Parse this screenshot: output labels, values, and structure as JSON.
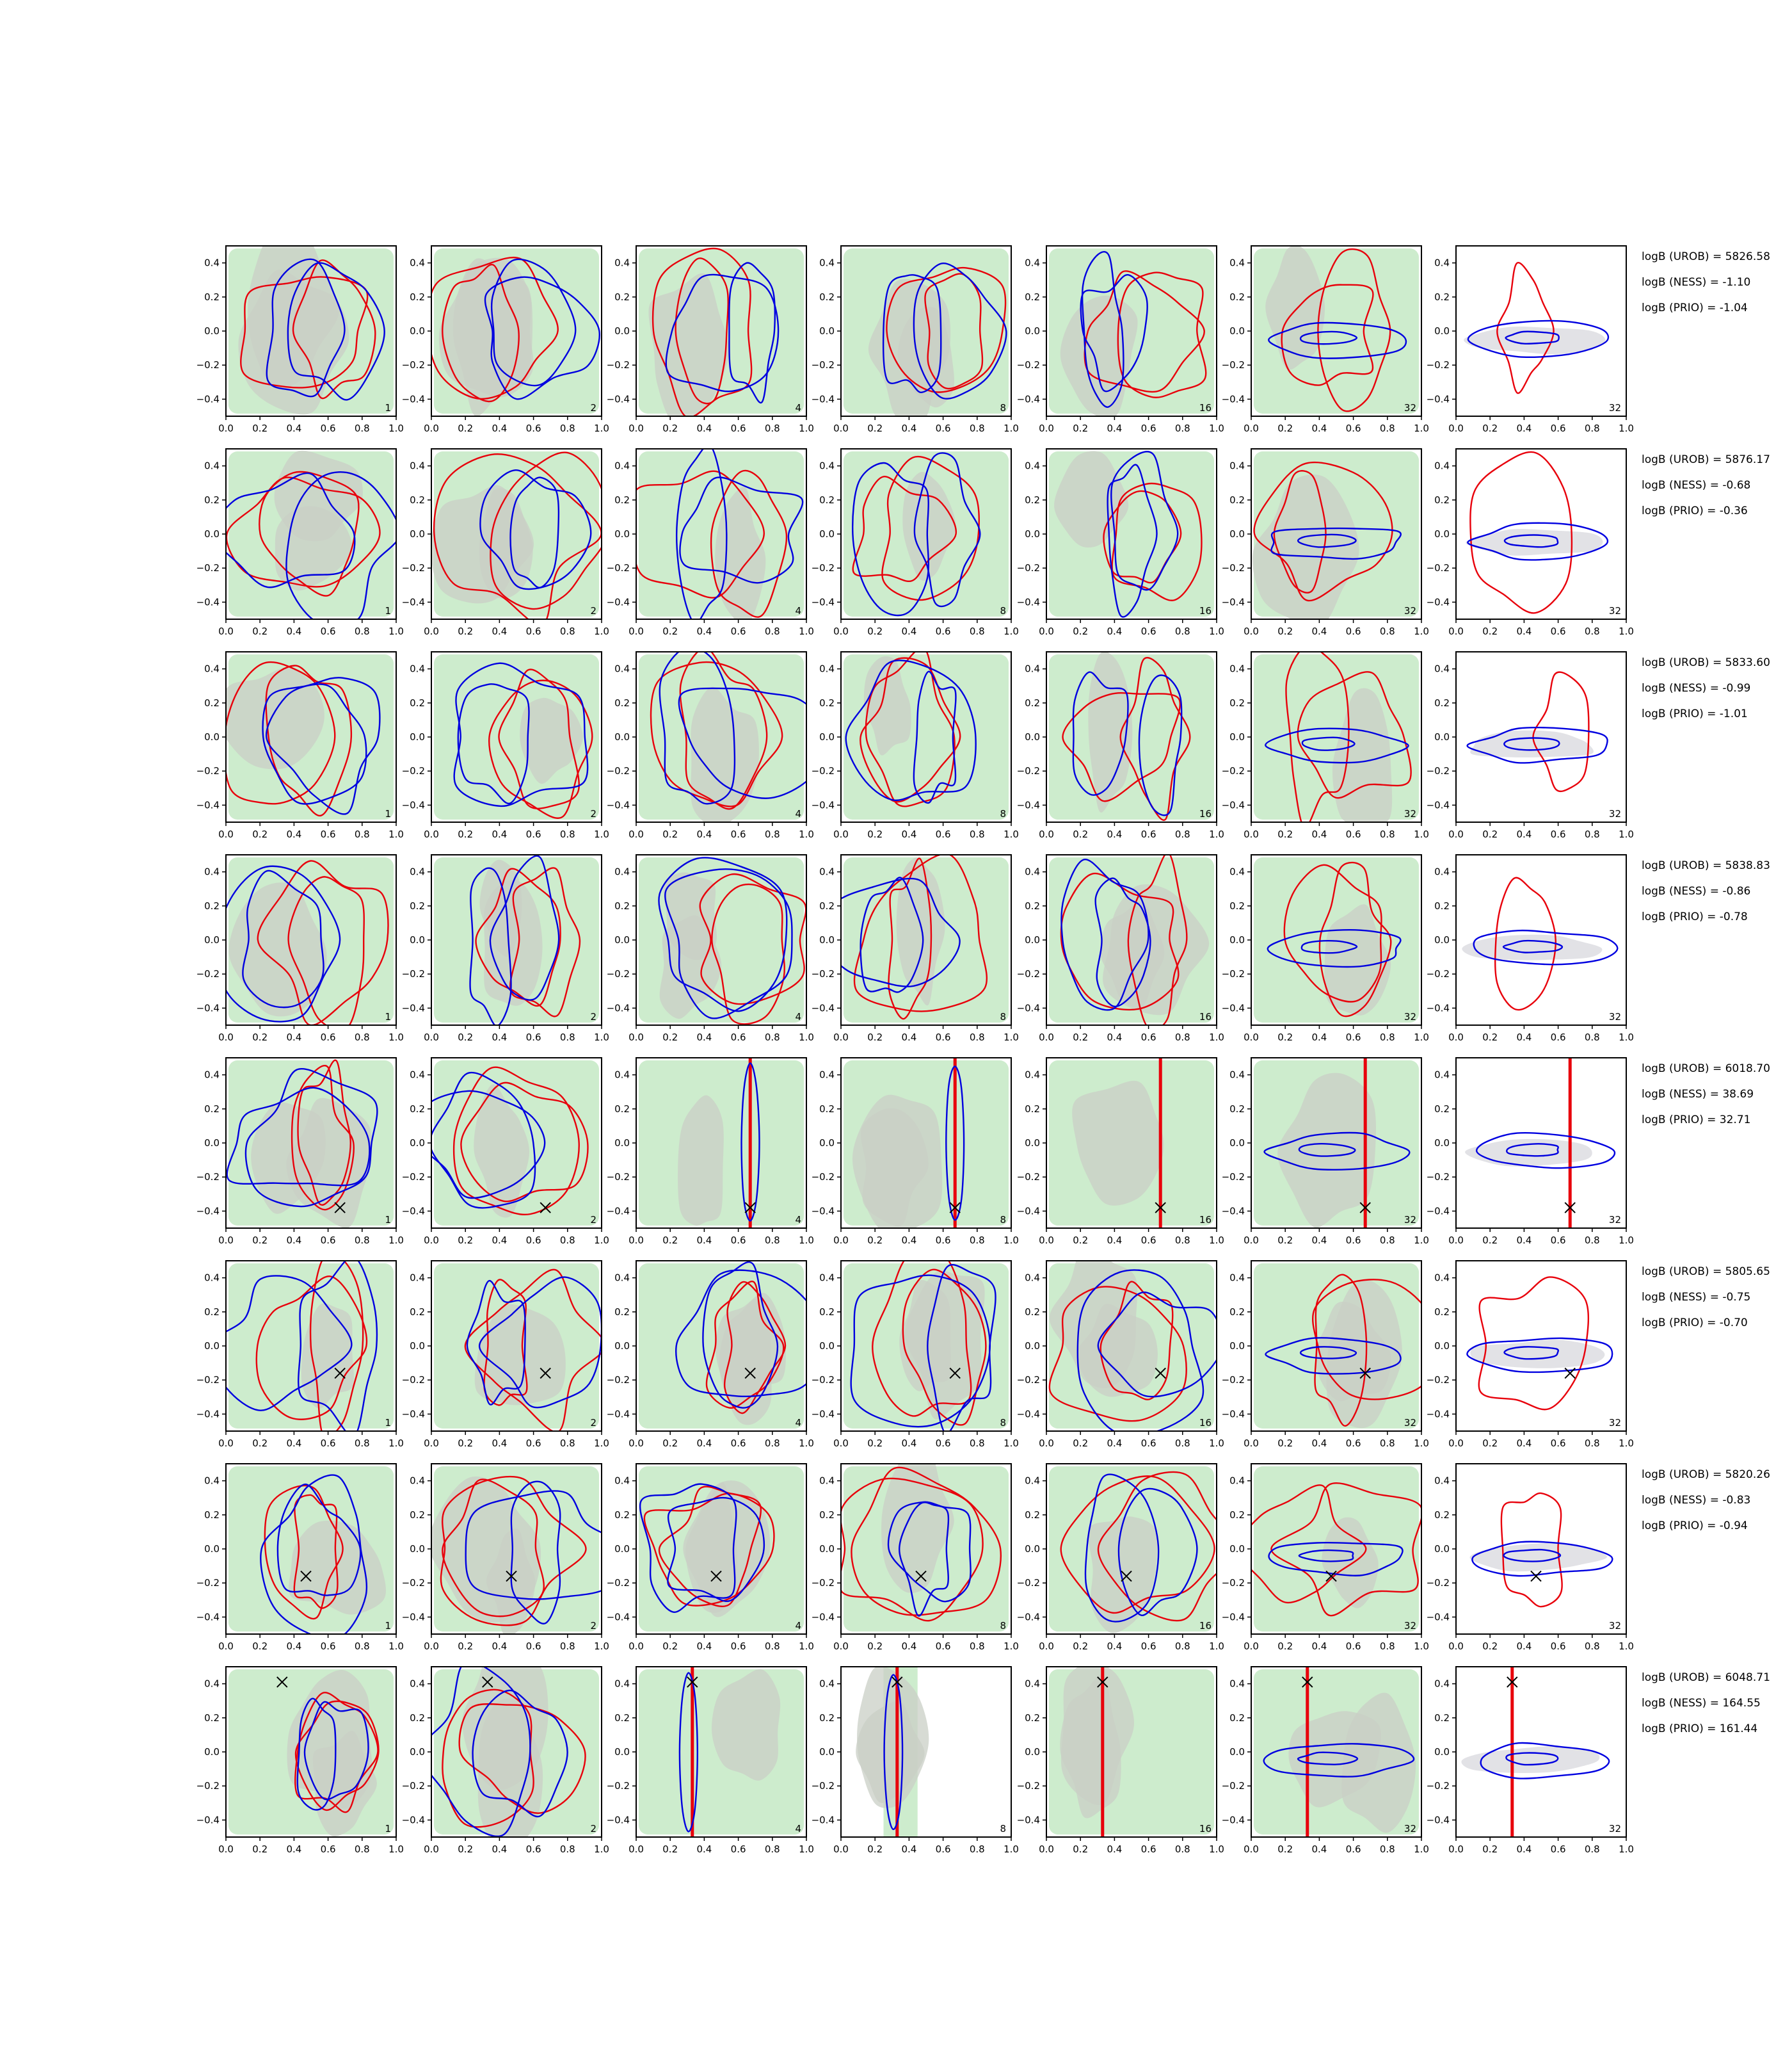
{
  "chart_data": {
    "type": "contour",
    "panel_columns": [
      1,
      2,
      4,
      8,
      16,
      32,
      32
    ],
    "x_axis": {
      "lim": [
        0.0,
        1.0
      ],
      "ticks": [
        "0.0",
        "0.2",
        "0.4",
        "0.6",
        "0.8",
        "1.0"
      ],
      "tick_values": [
        0.0,
        0.2,
        0.4,
        0.6,
        0.8,
        1.0
      ]
    },
    "y_axis": {
      "lim": [
        -0.5,
        0.5
      ],
      "ticks": [
        "0.4",
        "0.2",
        "0.0",
        "−0.2",
        "−0.4"
      ],
      "tick_values": [
        0.4,
        0.2,
        0.0,
        -0.2,
        -0.4
      ]
    },
    "legend_placement": "none",
    "grid": false,
    "colors": {
      "background_fill": "#cdeccd",
      "density_fill": "#c9cfc6",
      "contour_red": "#e8000b",
      "contour_blue": "#0000e0",
      "marker": "#000000",
      "axes": "#000000",
      "last_column_fill": "#e2e2e6"
    },
    "rows": [
      {
        "logB_UROB": "logB (UROB) = 5826.58",
        "logB_NESS": "logB (NESS) = -1.10",
        "logB_PRIO": "logB (PRIO) = -1.04",
        "marker": null
      },
      {
        "logB_UROB": "logB (UROB) = 5876.17",
        "logB_NESS": "logB (NESS) = -0.68",
        "logB_PRIO": "logB (PRIO) = -0.36",
        "marker": null
      },
      {
        "logB_UROB": "logB (UROB) = 5833.60",
        "logB_NESS": "logB (NESS) = -0.99",
        "logB_PRIO": "logB (PRIO) = -1.01",
        "marker": null
      },
      {
        "logB_UROB": "logB (UROB) = 5838.83",
        "logB_NESS": "logB (NESS) = -0.86",
        "logB_PRIO": "logB (PRIO) = -0.78",
        "marker": null
      },
      {
        "logB_UROB": "logB (UROB) = 6018.70",
        "logB_NESS": "logB (NESS) = 38.69",
        "logB_PRIO": "logB (PRIO) = 32.71",
        "marker": {
          "x": 0.67,
          "y": -0.38
        }
      },
      {
        "logB_UROB": "logB (UROB) = 5805.65",
        "logB_NESS": "logB (NESS) = -0.75",
        "logB_PRIO": "logB (PRIO) = -0.70",
        "marker": {
          "x": 0.67,
          "y": -0.16
        }
      },
      {
        "logB_UROB": "logB (UROB) = 5820.26",
        "logB_NESS": "logB (NESS) = -0.83",
        "logB_PRIO": "logB (PRIO) = -0.94",
        "marker": {
          "x": 0.47,
          "y": -0.16
        }
      },
      {
        "logB_UROB": "logB (UROB) = 6048.71",
        "logB_NESS": "logB (NESS) = 164.55",
        "logB_PRIO": "logB (PRIO) = 161.44",
        "marker": {
          "x": 0.33,
          "y": 0.41
        }
      }
    ]
  }
}
